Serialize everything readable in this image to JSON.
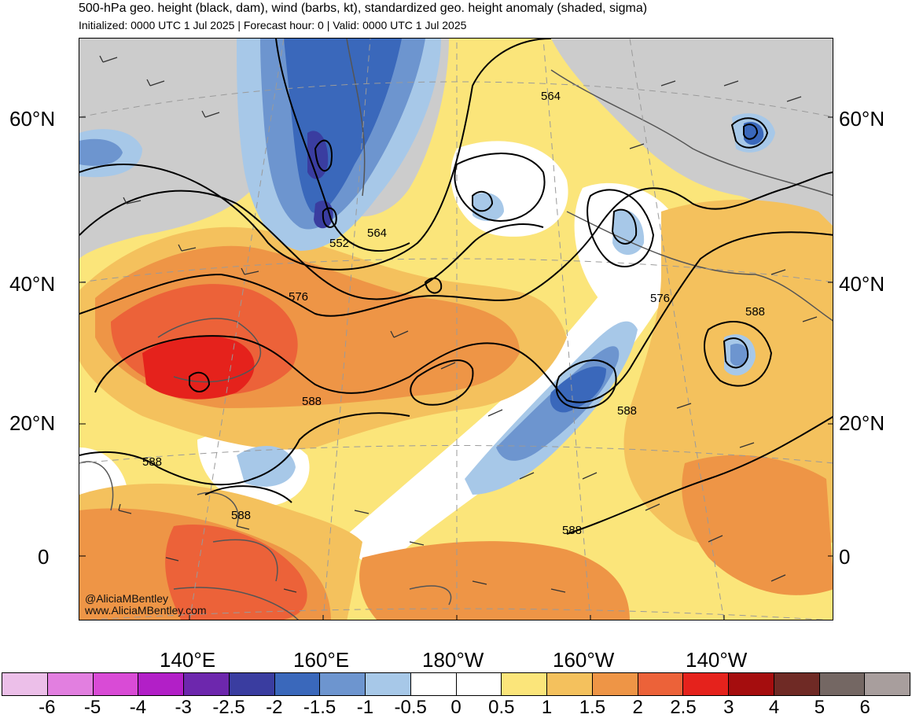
{
  "title": "500-hPa geo. height (black, dam), wind (barbs, kt), standardized geo. height anomaly (shaded, sigma)",
  "subtitle": "Initialized: 0000 UTC 1 Jul 2025 | Forecast hour: 0 | Valid: 0000 UTC 1 Jul 2025",
  "map": {
    "lat_labels_left": [
      "60°N",
      "40°N",
      "20°N",
      "0"
    ],
    "lat_labels_right": [
      "60°N",
      "40°N",
      "20°N",
      "0"
    ],
    "lon_labels": [
      "140°E",
      "160°E",
      "180°W",
      "160°W",
      "140°W"
    ],
    "contour_labels": [
      "564",
      "552",
      "564",
      "576",
      "576",
      "588",
      "588",
      "588",
      "588",
      "588",
      "588"
    ],
    "credit_handle": "@AliciaMBentley",
    "credit_url": "www.AliciaMBentley.com"
  },
  "colorbar": {
    "colors": [
      "#ecbfe9",
      "#e27fe0",
      "#d94bd6",
      "#b21fc7",
      "#6d27ad",
      "#3a3da0",
      "#3a68bb",
      "#6d95cf",
      "#a7c8e8",
      "#ffffff",
      "#ffffff",
      "#fbe57a",
      "#f4c15d",
      "#ee9546",
      "#ec6239",
      "#e5221c",
      "#a50d0e",
      "#6f2a25",
      "#746763",
      "#a89e9d"
    ],
    "ticks": [
      "-6",
      "-5",
      "-4",
      "-3",
      "-2.5",
      "-2",
      "-1.5",
      "-1",
      "-0.5",
      "0",
      "0.5",
      "1",
      "1.5",
      "2",
      "2.5",
      "3",
      "4",
      "5",
      "6"
    ]
  }
}
